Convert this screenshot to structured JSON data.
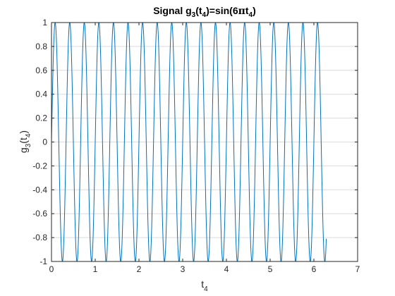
{
  "chart_data": {
    "type": "line",
    "title": "Signal g₃(t₄)=sin(6πt₄)",
    "title_parts": {
      "prefix": "Signal g",
      "sub1": "3",
      "mid1": "(t",
      "sub2": "4",
      "mid2": ")=sin(6",
      "pi": "π",
      "mid3": "t",
      "sub3": "4",
      "suffix": ")"
    },
    "xlabel": "t₄",
    "xlabel_parts": {
      "base": "t",
      "sub": "4"
    },
    "ylabel": "g₃(t₄)",
    "ylabel_parts": {
      "base": "g",
      "sub1": "3",
      "mid": "(t",
      "sub2": "4",
      "end": ")"
    },
    "xlim": [
      0,
      7
    ],
    "ylim": [
      -1,
      1
    ],
    "xticks": [
      "0",
      "1",
      "2",
      "3",
      "4",
      "5",
      "6",
      "7"
    ],
    "yticks": [
      "-1",
      "-0.8",
      "-0.6",
      "-0.4",
      "-0.2",
      "0",
      "0.2",
      "0.4",
      "0.6",
      "0.8",
      "1"
    ],
    "grid": "horizontal",
    "series": [
      {
        "function": "sin(6*pi*t)",
        "t_start": 0,
        "t_end": 6.2832,
        "color": "#0072BD"
      }
    ]
  }
}
